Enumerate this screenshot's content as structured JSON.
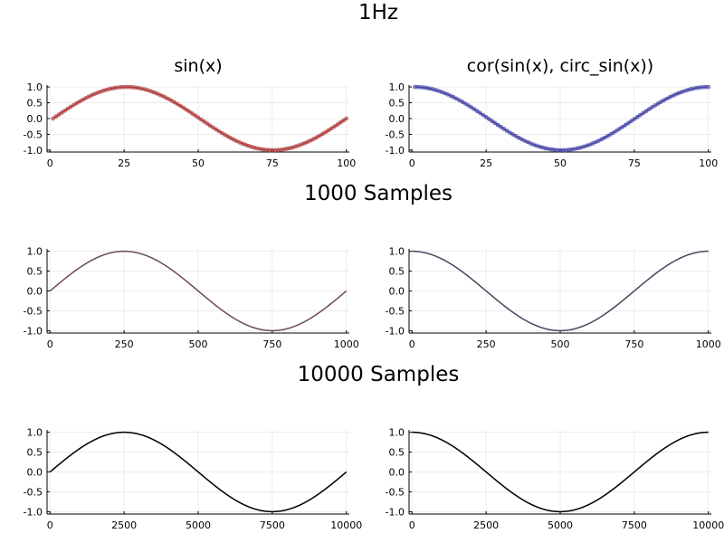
{
  "figure": {
    "main_title": "1Hz",
    "section_titles": [
      "1000 Samples",
      "10000 Samples"
    ]
  },
  "chart_data": [
    {
      "type": "scatter",
      "title": "sin(x)",
      "function": "sin",
      "x_ticks": [
        0,
        25,
        50,
        75,
        100
      ],
      "xlim": [
        -1,
        101
      ],
      "y_ticks": [
        1.0,
        0.5,
        0.0,
        -0.5,
        -1.0
      ],
      "y_tick_labels": [
        "1.0",
        "0.5",
        "0.0",
        "-0.5",
        "-1.0"
      ],
      "ylim": [
        -1.06,
        1.06
      ],
      "points": 100,
      "x_range": [
        1,
        100
      ],
      "line_color": "#b04040",
      "marker_color": "#b04040",
      "grid": true
    },
    {
      "type": "scatter",
      "title": "cor(sin(x), circ_sin(x))",
      "function": "cos",
      "x_ticks": [
        0,
        25,
        50,
        75,
        100
      ],
      "xlim": [
        -1,
        101
      ],
      "y_ticks": [
        1.0,
        0.5,
        0.0,
        -0.5,
        -1.0
      ],
      "y_tick_labels": [
        "1.0",
        "0.5",
        "0.0",
        "-0.5",
        "-1.0"
      ],
      "ylim": [
        -1.06,
        1.06
      ],
      "points": 100,
      "x_range": [
        1,
        100
      ],
      "line_color": "#4848a8",
      "marker_color": "#4848a8",
      "grid": true
    },
    {
      "type": "line",
      "title": "",
      "function": "sin",
      "x_ticks": [
        0,
        250,
        500,
        750,
        1000
      ],
      "xlim": [
        -10,
        1010
      ],
      "y_ticks": [
        1.0,
        0.5,
        0.0,
        -0.5,
        -1.0
      ],
      "y_tick_labels": [
        "1.0",
        "0.5",
        "0.0",
        "-0.5",
        "-1.0"
      ],
      "ylim": [
        -1.06,
        1.06
      ],
      "points": 1000,
      "x_range": [
        0,
        1000
      ],
      "line_color": "#6b4a4a",
      "grid": true
    },
    {
      "type": "line",
      "title": "",
      "function": "cos",
      "x_ticks": [
        0,
        250,
        500,
        750,
        1000
      ],
      "xlim": [
        -10,
        1010
      ],
      "y_ticks": [
        1.0,
        0.5,
        0.0,
        -0.5,
        -1.0
      ],
      "y_tick_labels": [
        "1.0",
        "0.5",
        "0.0",
        "-0.5",
        "-1.0"
      ],
      "ylim": [
        -1.06,
        1.06
      ],
      "points": 1000,
      "x_range": [
        0,
        1000
      ],
      "line_color": "#45455f",
      "grid": true
    },
    {
      "type": "line",
      "title": "",
      "function": "sin",
      "x_ticks": [
        0,
        2500,
        5000,
        7500,
        10000
      ],
      "xlim": [
        -100,
        10100
      ],
      "y_ticks": [
        1.0,
        0.5,
        0.0,
        -0.5,
        -1.0
      ],
      "y_tick_labels": [
        "1.0",
        "0.5",
        "0.0",
        "-0.5",
        "-1.0"
      ],
      "ylim": [
        -1.06,
        1.06
      ],
      "points": 10000,
      "x_range": [
        0,
        10000
      ],
      "line_color": "#000000",
      "grid": true
    },
    {
      "type": "line",
      "title": "",
      "function": "cos",
      "x_ticks": [
        0,
        2500,
        5000,
        7500,
        10000
      ],
      "xlim": [
        -100,
        10100
      ],
      "y_ticks": [
        1.0,
        0.5,
        0.0,
        -0.5,
        -1.0
      ],
      "y_tick_labels": [
        "1.0",
        "0.5",
        "0.0",
        "-0.5",
        "-1.0"
      ],
      "ylim": [
        -1.06,
        1.06
      ],
      "points": 10000,
      "x_range": [
        0,
        10000
      ],
      "line_color": "#000000",
      "grid": true
    }
  ]
}
